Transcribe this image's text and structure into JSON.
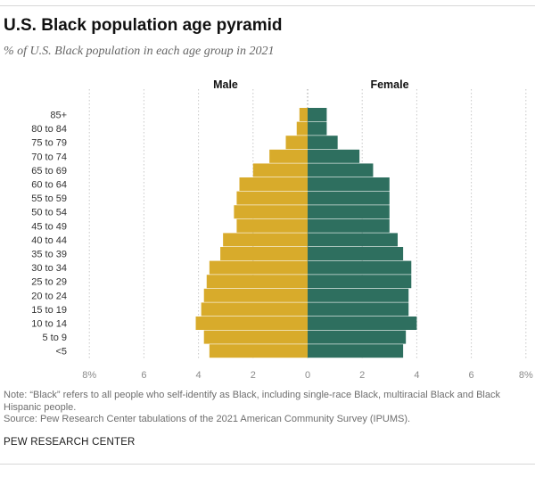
{
  "header": {
    "title": "U.S. Black population age pyramid",
    "subtitle": "% of U.S. Black population in each age group in 2021"
  },
  "chart_data": {
    "type": "bar",
    "orientation": "horizontal-butterfly",
    "categories": [
      "85+",
      "80 to 84",
      "75 to 79",
      "70 to 74",
      "65 to 69",
      "60 to 64",
      "55 to 59",
      "50 to 54",
      "45 to 49",
      "40 to 44",
      "35 to 39",
      "30 to 34",
      "25 to 29",
      "20 to 24",
      "15 to 19",
      "10 to 14",
      "5 to 9",
      "<5"
    ],
    "series": [
      {
        "name": "Male",
        "color": "#d8ab2b",
        "values": [
          0.3,
          0.4,
          0.8,
          1.4,
          2.0,
          2.5,
          2.6,
          2.7,
          2.6,
          3.1,
          3.2,
          3.6,
          3.7,
          3.8,
          3.9,
          4.1,
          3.8,
          3.6
        ]
      },
      {
        "name": "Female",
        "color": "#2e6f5f",
        "values": [
          0.7,
          0.7,
          1.1,
          1.9,
          2.4,
          3.0,
          3.0,
          3.0,
          3.0,
          3.3,
          3.5,
          3.8,
          3.8,
          3.7,
          3.7,
          4.0,
          3.6,
          3.5
        ]
      }
    ],
    "xlim": [
      -8,
      8
    ],
    "ticks": [
      {
        "value": -8,
        "label": "8%"
      },
      {
        "value": -6,
        "label": "6"
      },
      {
        "value": -4,
        "label": "4"
      },
      {
        "value": -2,
        "label": "2"
      },
      {
        "value": 0,
        "label": "0"
      },
      {
        "value": 2,
        "label": "2"
      },
      {
        "value": 4,
        "label": "4"
      },
      {
        "value": 6,
        "label": "6"
      },
      {
        "value": 8,
        "label": "8%"
      }
    ],
    "grid": true
  },
  "footer": {
    "note": "Note: “Black” refers to all people who self-identify as Black, including single-race Black, multiracial Black and Black Hispanic people.",
    "source": "Source: Pew Research Center tabulations of the 2021 American Community Survey (IPUMS).",
    "brand": "PEW RESEARCH CENTER"
  }
}
